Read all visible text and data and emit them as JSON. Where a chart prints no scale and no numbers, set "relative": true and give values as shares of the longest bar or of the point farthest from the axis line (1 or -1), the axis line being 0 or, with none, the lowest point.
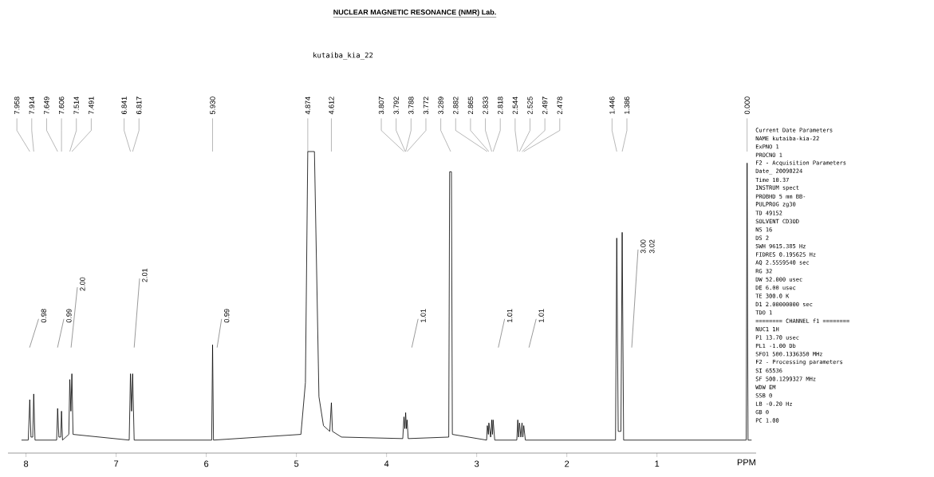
{
  "chart_data": [
    {
      "type": "line",
      "title": "NUCLEAR MAGNETIC RESONANCE (NMR) Lab.",
      "subtitle": "kutaiba_kia_22",
      "xlabel": "PPM",
      "relative": true,
      "series": [
        {
          "color": "#000000",
          "x": [
            8.05,
            7.975,
            7.958,
            7.945,
            7.925,
            7.914,
            7.9,
            7.66,
            7.649,
            7.635,
            7.615,
            7.606,
            7.595,
            7.525,
            7.514,
            7.502,
            7.491,
            7.478,
            6.855,
            6.841,
            6.829,
            6.817,
            6.8,
            5.94,
            5.93,
            5.92,
            4.95,
            4.9,
            4.874,
            4.8,
            4.75,
            4.7,
            4.63,
            4.612,
            4.6,
            4.5,
            3.82,
            3.807,
            3.797,
            3.788,
            3.78,
            3.772,
            3.76,
            3.31,
            3.3,
            3.28,
            3.27,
            2.89,
            2.882,
            2.87,
            2.865,
            2.845,
            2.833,
            2.825,
            2.818,
            2.8,
            2.555,
            2.544,
            2.535,
            2.525,
            2.51,
            2.497,
            2.488,
            2.478,
            2.46,
            1.46,
            1.446,
            1.43,
            1.4,
            1.386,
            1.37,
            0.01,
            0.0,
            -0.01,
            -0.05
          ],
          "values": [
            0.043,
            0.043,
            0.177,
            0.053,
            0.053,
            0.196,
            0.043,
            0.043,
            0.148,
            0.053,
            0.053,
            0.139,
            0.043,
            0.062,
            0.244,
            0.139,
            0.263,
            0.062,
            0.043,
            0.263,
            0.139,
            0.263,
            0.043,
            0.043,
            0.359,
            0.043,
            0.062,
            0.234,
            1.0,
            1.0,
            0.187,
            0.091,
            0.072,
            0.167,
            0.072,
            0.053,
            0.048,
            0.12,
            0.081,
            0.134,
            0.081,
            0.11,
            0.048,
            0.053,
            0.933,
            0.933,
            0.062,
            0.043,
            0.091,
            0.062,
            0.1,
            0.053,
            0.11,
            0.062,
            0.11,
            0.043,
            0.043,
            0.11,
            0.053,
            0.1,
            0.053,
            0.1,
            0.053,
            0.091,
            0.043,
            0.043,
            0.713,
            0.072,
            0.072,
            0.732,
            0.043,
            0.043,
            0.962,
            0.043,
            0.043
          ]
        },
        {
          "color": "#808080",
          "x": [
            7.96,
            7.86,
            null,
            7.65,
            7.58,
            null,
            7.5,
            7.43,
            null,
            6.8,
            6.74,
            null,
            5.88,
            5.83,
            null,
            3.72,
            3.65,
            null,
            2.76,
            2.69,
            null,
            2.42,
            2.34,
            null,
            1.28,
            1.21
          ],
          "values": [
            0.35,
            0.445,
            null,
            0.35,
            0.445,
            null,
            0.35,
            0.55,
            null,
            0.35,
            0.579,
            null,
            0.35,
            0.445,
            null,
            0.35,
            0.445,
            null,
            0.35,
            0.445,
            null,
            0.35,
            0.445,
            null,
            0.35,
            0.675
          ]
        }
      ],
      "xlim": [
        8.2,
        -0.1
      ],
      "xticks": [
        8,
        7,
        6,
        5,
        4,
        3,
        2,
        1
      ],
      "annotations": [
        {
          "text": "7.958",
          "x": 7.958
        },
        {
          "text": "7.914",
          "x": 7.914
        },
        {
          "text": "7.649",
          "x": 7.649
        },
        {
          "text": "7.606",
          "x": 7.606
        },
        {
          "text": "7.514",
          "x": 7.514
        },
        {
          "text": "7.491",
          "x": 7.491
        },
        {
          "text": "6.841",
          "x": 6.841
        },
        {
          "text": "6.817",
          "x": 6.817
        },
        {
          "text": "5.930",
          "x": 5.93
        },
        {
          "text": "4.874",
          "x": 4.874
        },
        {
          "text": "4.612",
          "x": 4.612
        },
        {
          "text": "3.807",
          "x": 3.807
        },
        {
          "text": "3.792",
          "x": 3.792
        },
        {
          "text": "3.788",
          "x": 3.788
        },
        {
          "text": "3.772",
          "x": 3.772
        },
        {
          "text": "3.289",
          "x": 3.289
        },
        {
          "text": "2.882",
          "x": 2.882
        },
        {
          "text": "2.865",
          "x": 2.865
        },
        {
          "text": "2.833",
          "x": 2.833
        },
        {
          "text": "2.818",
          "x": 2.818
        },
        {
          "text": "2.544",
          "x": 2.544
        },
        {
          "text": "2.525",
          "x": 2.525
        },
        {
          "text": "2.497",
          "x": 2.497
        },
        {
          "text": "2.478",
          "x": 2.478
        },
        {
          "text": "1.446",
          "x": 1.446
        },
        {
          "text": "1.386",
          "x": 1.386
        },
        {
          "text": "0.000",
          "x": 0.0
        },
        {
          "text": "0.98",
          "x": 7.86,
          "y": 0.445
        },
        {
          "text": "0.99",
          "x": 7.58,
          "y": 0.445
        },
        {
          "text": "2.00",
          "x": 7.43,
          "y": 0.55
        },
        {
          "text": "2.01",
          "x": 6.74,
          "y": 0.579
        },
        {
          "text": "0.99",
          "x": 5.83,
          "y": 0.445
        },
        {
          "text": "1.01",
          "x": 3.65,
          "y": 0.445
        },
        {
          "text": "1.01",
          "x": 2.69,
          "y": 0.445
        },
        {
          "text": "1.01",
          "x": 2.34,
          "y": 0.445
        },
        {
          "text": "3.00",
          "x": 1.21,
          "y": 0.675
        },
        {
          "text": "3.02",
          "x": 1.21,
          "y": 0.675
        }
      ]
    },
    {
      "type": "other",
      "annotations": [
        "Current Date Parameters",
        "NAME kutaiba-kia-22",
        "ExPNO 1",
        "PROCNO 1",
        "F2 - Acquisition Parameters",
        "Date_ 20090224",
        "Time 10.37",
        "INSTRUM spect",
        "PROBHD 5 mm BB-",
        "PULPROG zg30",
        "TD 49152",
        "SOLVENT CD3OD",
        "NS 16",
        "DS 2",
        "SWH 9615.385 Hz",
        "FIDRES 0.195625 Hz",
        "AQ 2.5559540 sec",
        "RG 32",
        "DW 52.000 usec",
        "DE 6.00 usec",
        "TE 300.0 K",
        "D1 2.00000000 sec",
        "TDO 1",
        "======== CHANNEL f1 ========",
        "NUC1 1H",
        "P1 13.70 usec",
        "PL1 -1.00 Db",
        "SFO1 500.1336350 MHz",
        "F2 - Processing parameters",
        "SI 65536",
        "SF 500.1299327 MHz",
        "WDW EM",
        "SSB 0",
        "LB -0.20 Hz",
        "GB 0",
        "PC 1.00"
      ]
    }
  ]
}
